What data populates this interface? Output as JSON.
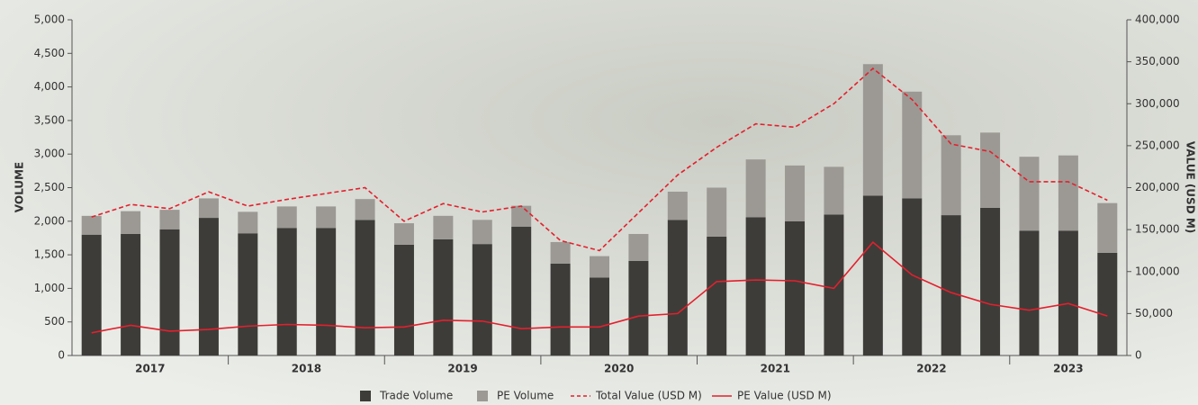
{
  "chart_data": {
    "type": "bar",
    "y_label": "VOLUME",
    "y2_label": "VALUE (USD M)",
    "groups": [
      {
        "label": "2017",
        "categories": [
          null,
          null,
          null,
          null
        ]
      },
      {
        "label": "2018",
        "categories": [
          null,
          null,
          null,
          null
        ]
      },
      {
        "label": "2019",
        "categories": [
          null,
          null,
          null,
          null
        ]
      },
      {
        "label": "2020",
        "categories": [
          null,
          null,
          null,
          null
        ]
      },
      {
        "label": "2021",
        "categories": [
          null,
          null,
          null,
          null
        ]
      },
      {
        "label": "2022",
        "categories": [
          null,
          null,
          null,
          null
        ]
      },
      {
        "label": "2023",
        "categories": [
          null,
          null,
          null
        ]
      }
    ],
    "ylim": [
      0,
      5000
    ],
    "yticks": [
      0,
      {
        "value": 500,
        "label": "500"
      },
      {
        "value": 1000,
        "label": "1,000"
      },
      {
        "value": 1500,
        "label": "1,500"
      },
      {
        "value": 2000,
        "label": "2,000"
      },
      {
        "value": 2500,
        "label": "2,500"
      },
      {
        "value": 3000,
        "label": "3,000"
      },
      {
        "value": 3500,
        "label": "3,500"
      },
      {
        "value": 4000,
        "label": "4,000"
      },
      {
        "value": 4500,
        "label": "4,500"
      },
      {
        "value": 5000,
        "label": "5,000"
      }
    ],
    "y2lim": [
      0,
      400000
    ],
    "y2ticks": [
      0,
      {
        "value": 50000,
        "label": "50,000"
      },
      {
        "value": 100000,
        "label": "100,000"
      },
      {
        "value": 150000,
        "label": "150,000"
      },
      {
        "value": 200000,
        "label": "200,000"
      },
      {
        "value": 250000,
        "label": "250,000"
      },
      {
        "value": 300000,
        "label": "300,000"
      },
      {
        "value": 350000,
        "label": "350,000"
      },
      {
        "value": 400000,
        "label": "400,000"
      }
    ],
    "stacked": true,
    "series": [
      {
        "name": "Trade Volume",
        "type": "bar",
        "color": "#3d3c39",
        "values": [
          1800,
          1810,
          1880,
          2050,
          1820,
          1900,
          1900,
          2020,
          1650,
          1730,
          1660,
          1920,
          1370,
          1160,
          1410,
          2020,
          1770,
          2060,
          2000,
          2100,
          2380,
          2340,
          2090,
          2200,
          1860,
          1860,
          1530
        ]
      },
      {
        "name": "PE Volume",
        "type": "bar",
        "color": "#9c9994",
        "values": [
          280,
          340,
          290,
          290,
          320,
          320,
          320,
          310,
          320,
          350,
          360,
          310,
          320,
          320,
          400,
          420,
          730,
          860,
          830,
          710,
          1960,
          1590,
          1190,
          1120,
          1100,
          1120,
          740
        ]
      },
      {
        "name": "Total Value (USD M)",
        "type": "line",
        "dashed": true,
        "axis": "y2",
        "color": "#e3202d",
        "values": [
          165000,
          180000,
          175000,
          195000,
          178000,
          186000,
          193000,
          200000,
          160000,
          181000,
          171000,
          178000,
          137000,
          125000,
          170000,
          215000,
          248000,
          276000,
          272000,
          300000,
          342000,
          305000,
          252000,
          243000,
          207000,
          207000,
          185000
        ]
      },
      {
        "name": "PE Value (USD M)",
        "type": "line",
        "dashed": false,
        "axis": "y2",
        "color": "#e3202d",
        "values": [
          27000,
          36000,
          29000,
          31000,
          35000,
          37000,
          36000,
          33000,
          34000,
          42000,
          41000,
          32000,
          34000,
          34000,
          47000,
          50000,
          88000,
          90000,
          89000,
          80000,
          135000,
          96000,
          75000,
          61000,
          54000,
          62000,
          47000
        ]
      }
    ]
  }
}
